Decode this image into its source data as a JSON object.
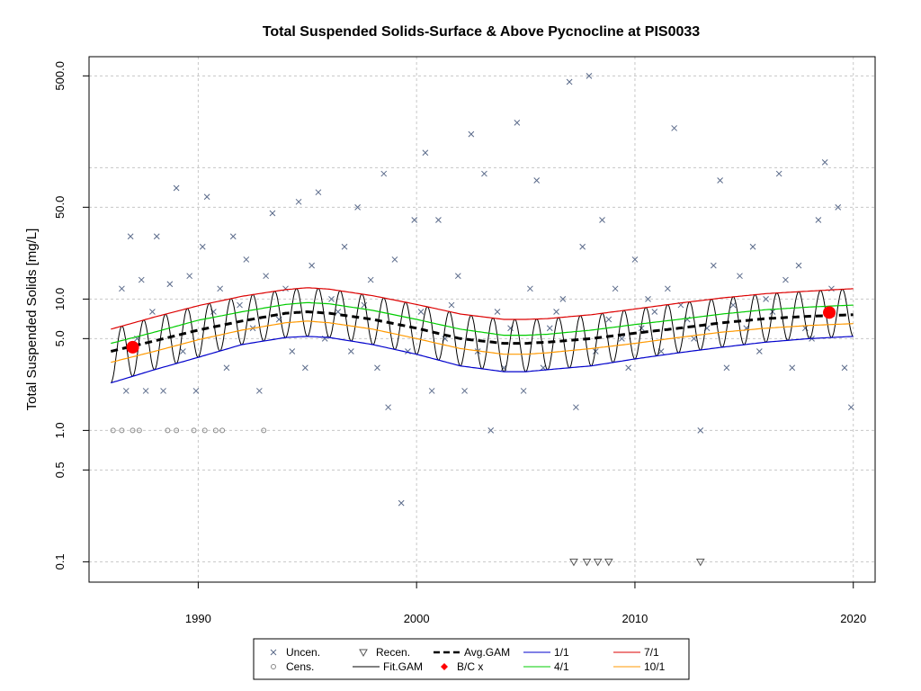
{
  "chart_data": {
    "type": "scatter",
    "title": "Total Suspended Solids-Surface & Above Pycnocline at PIS0033",
    "xlabel": "",
    "ylabel": "Total Suspended Solids [mg/L]",
    "y_scale": "log",
    "xlim": [
      1985,
      2021
    ],
    "ylim": [
      0.07,
      700
    ],
    "x_ticks": [
      "1990",
      "2000",
      "2010",
      "2020"
    ],
    "y_ticks": [
      "0.1",
      "0.5",
      "1.0",
      "5.0",
      "10.0",
      "50.0",
      "500.0"
    ],
    "y_gridlines": [
      0.1,
      0.5,
      1.0,
      5.0,
      10.0,
      50.0,
      100.0,
      500.0
    ],
    "grid": true,
    "legend_position": "bottom",
    "legend": [
      {
        "label": "Uncen.",
        "marker": "x",
        "color": "#5a6a8a"
      },
      {
        "label": "Cens.",
        "marker": "circle",
        "color": "#888888"
      },
      {
        "label": "Recen.",
        "marker": "triangle-down",
        "color": "#555555"
      },
      {
        "label": "Fit.GAM",
        "line": "solid",
        "color": "#000000"
      },
      {
        "label": "Avg.GAM",
        "line": "dashed",
        "color": "#000000"
      },
      {
        "label": "B/C x",
        "marker": "dot",
        "color": "#ff0000"
      },
      {
        "label": "1/1",
        "line": "solid",
        "color": "#0000cc"
      },
      {
        "label": "4/1",
        "line": "solid",
        "color": "#00cc00"
      },
      {
        "label": "7/1",
        "line": "solid",
        "color": "#dd0000"
      },
      {
        "label": "10/1",
        "line": "solid",
        "color": "#ff9900"
      }
    ],
    "series": [
      {
        "name": "Avg.GAM",
        "x": [
          1986,
          1988,
          1990,
          1992,
          1994,
          1995,
          1996,
          1998,
          2000,
          2002,
          2004,
          2005,
          2006,
          2008,
          2010,
          2012,
          2014,
          2016,
          2018,
          2020
        ],
        "values": [
          4.0,
          4.8,
          5.8,
          6.8,
          7.8,
          8.0,
          7.8,
          7.0,
          6.0,
          5.0,
          4.6,
          4.6,
          4.7,
          5.0,
          5.5,
          6.0,
          6.6,
          7.1,
          7.4,
          7.6
        ]
      },
      {
        "name": "1/1",
        "x": [
          1986,
          1988,
          1990,
          1992,
          1994,
          1995,
          1996,
          1998,
          2000,
          2002,
          2004,
          2005,
          2006,
          2008,
          2010,
          2012,
          2014,
          2016,
          2018,
          2020
        ],
        "values": [
          2.3,
          2.9,
          3.6,
          4.5,
          5.1,
          5.2,
          5.1,
          4.5,
          3.8,
          3.1,
          2.8,
          2.8,
          2.9,
          3.1,
          3.5,
          3.9,
          4.3,
          4.7,
          5.0,
          5.2
        ]
      },
      {
        "name": "4/1",
        "x": [
          1986,
          1988,
          1990,
          1992,
          1994,
          1995,
          1996,
          1998,
          2000,
          2002,
          2004,
          2005,
          2006,
          2008,
          2010,
          2012,
          2014,
          2016,
          2018,
          2020
        ],
        "values": [
          4.6,
          5.6,
          6.9,
          8.0,
          9.1,
          9.4,
          9.2,
          8.2,
          7.0,
          5.9,
          5.3,
          5.3,
          5.4,
          5.8,
          6.4,
          7.0,
          7.7,
          8.3,
          8.7,
          9.0
        ]
      },
      {
        "name": "7/1",
        "x": [
          1986,
          1988,
          1990,
          1992,
          1994,
          1995,
          1996,
          1998,
          2000,
          2002,
          2004,
          2005,
          2006,
          2008,
          2010,
          2012,
          2014,
          2016,
          2018,
          2020
        ],
        "values": [
          5.9,
          7.3,
          8.9,
          10.5,
          11.8,
          12.2,
          11.9,
          10.6,
          9.1,
          7.7,
          7.0,
          7.0,
          7.1,
          7.6,
          8.4,
          9.3,
          10.2,
          11.0,
          11.5,
          12.0
        ]
      },
      {
        "name": "10/1",
        "x": [
          1986,
          1988,
          1990,
          1992,
          1994,
          1995,
          1996,
          1998,
          2000,
          2002,
          2004,
          2005,
          2006,
          2008,
          2010,
          2012,
          2014,
          2016,
          2018,
          2020
        ],
        "values": [
          3.3,
          4.0,
          4.9,
          5.8,
          6.6,
          6.8,
          6.6,
          5.9,
          5.0,
          4.2,
          3.8,
          3.8,
          3.9,
          4.2,
          4.6,
          5.1,
          5.6,
          6.0,
          6.3,
          6.5
        ]
      },
      {
        "name": "B/C x",
        "x": [
          1987.0,
          2018.9
        ],
        "values": [
          4.3,
          7.9
        ]
      },
      {
        "name": "Uncen.",
        "x": [
          1986.5,
          1986.7,
          1986.9,
          1987.2,
          1987.4,
          1987.6,
          1987.9,
          1988.1,
          1988.4,
          1988.7,
          1989.0,
          1989.3,
          1989.6,
          1989.9,
          1990.2,
          1990.4,
          1990.7,
          1991.0,
          1991.3,
          1991.6,
          1991.9,
          1992.2,
          1992.5,
          1992.8,
          1993.1,
          1993.4,
          1993.7,
          1994.0,
          1994.3,
          1994.6,
          1994.9,
          1995.2,
          1995.5,
          1995.8,
          1996.1,
          1996.4,
          1996.7,
          1997.0,
          1997.3,
          1997.6,
          1997.9,
          1998.2,
          1998.5,
          1998.7,
          1999.0,
          1999.3,
          1999.6,
          1999.9,
          2000.2,
          2000.4,
          2000.7,
          2001.0,
          2001.3,
          2001.6,
          2001.9,
          2002.2,
          2002.5,
          2002.8,
          2003.1,
          2003.4,
          2003.7,
          2004.0,
          2004.3,
          2004.6,
          2004.9,
          2005.2,
          2005.5,
          2005.8,
          2006.1,
          2006.4,
          2006.7,
          2007.0,
          2007.3,
          2007.6,
          2007.9,
          2008.2,
          2008.5,
          2008.8,
          2009.1,
          2009.4,
          2009.7,
          2010.0,
          2010.3,
          2010.6,
          2010.9,
          2011.2,
          2011.5,
          2011.8,
          2012.1,
          2012.4,
          2012.7,
          2013.0,
          2013.3,
          2013.6,
          2013.9,
          2014.2,
          2014.5,
          2014.8,
          2015.1,
          2015.4,
          2015.7,
          2016.0,
          2016.3,
          2016.6,
          2016.9,
          2017.2,
          2017.5,
          2017.8,
          2018.1,
          2018.4,
          2018.7,
          2019.0,
          2019.3,
          2019.6,
          2019.9
        ],
        "values": [
          12,
          2,
          30,
          5,
          14,
          2,
          8,
          30,
          2,
          13,
          70,
          4,
          15,
          2,
          25,
          60,
          8,
          12,
          3,
          30,
          9,
          20,
          6,
          2,
          15,
          45,
          7,
          12,
          4,
          55,
          3,
          18,
          65,
          5,
          10,
          8,
          25,
          4,
          50,
          9,
          14,
          3,
          90,
          1.5,
          20,
          0.28,
          4,
          40,
          8,
          130,
          2,
          40,
          5,
          9,
          15,
          2,
          180,
          4,
          90,
          1.0,
          8,
          3,
          6,
          220,
          2,
          12,
          80,
          3,
          6,
          8,
          10,
          450,
          1.5,
          25,
          500,
          4,
          40,
          7,
          12,
          5,
          3,
          20,
          6,
          10,
          8,
          4,
          12,
          200,
          9,
          7,
          5,
          1.0,
          6,
          18,
          80,
          3,
          9,
          15,
          6,
          25,
          4,
          10,
          8,
          90,
          14,
          3,
          18,
          6,
          5,
          40,
          110,
          12,
          50,
          3,
          1.5
        ]
      },
      {
        "name": "Cens.",
        "x": [
          1986.1,
          1986.5,
          1987.0,
          1987.3,
          1988.6,
          1989.0,
          1989.8,
          1990.3,
          1990.8,
          1991.1,
          1993.0
        ],
        "values": [
          1,
          1,
          1,
          1,
          1,
          1,
          1,
          1,
          1,
          1,
          1
        ]
      },
      {
        "name": "Recen.",
        "x": [
          2007.2,
          2007.8,
          2008.3,
          2008.8,
          2013.0
        ],
        "values": [
          0.1,
          0.1,
          0.1,
          0.1,
          0.1
        ]
      }
    ]
  }
}
